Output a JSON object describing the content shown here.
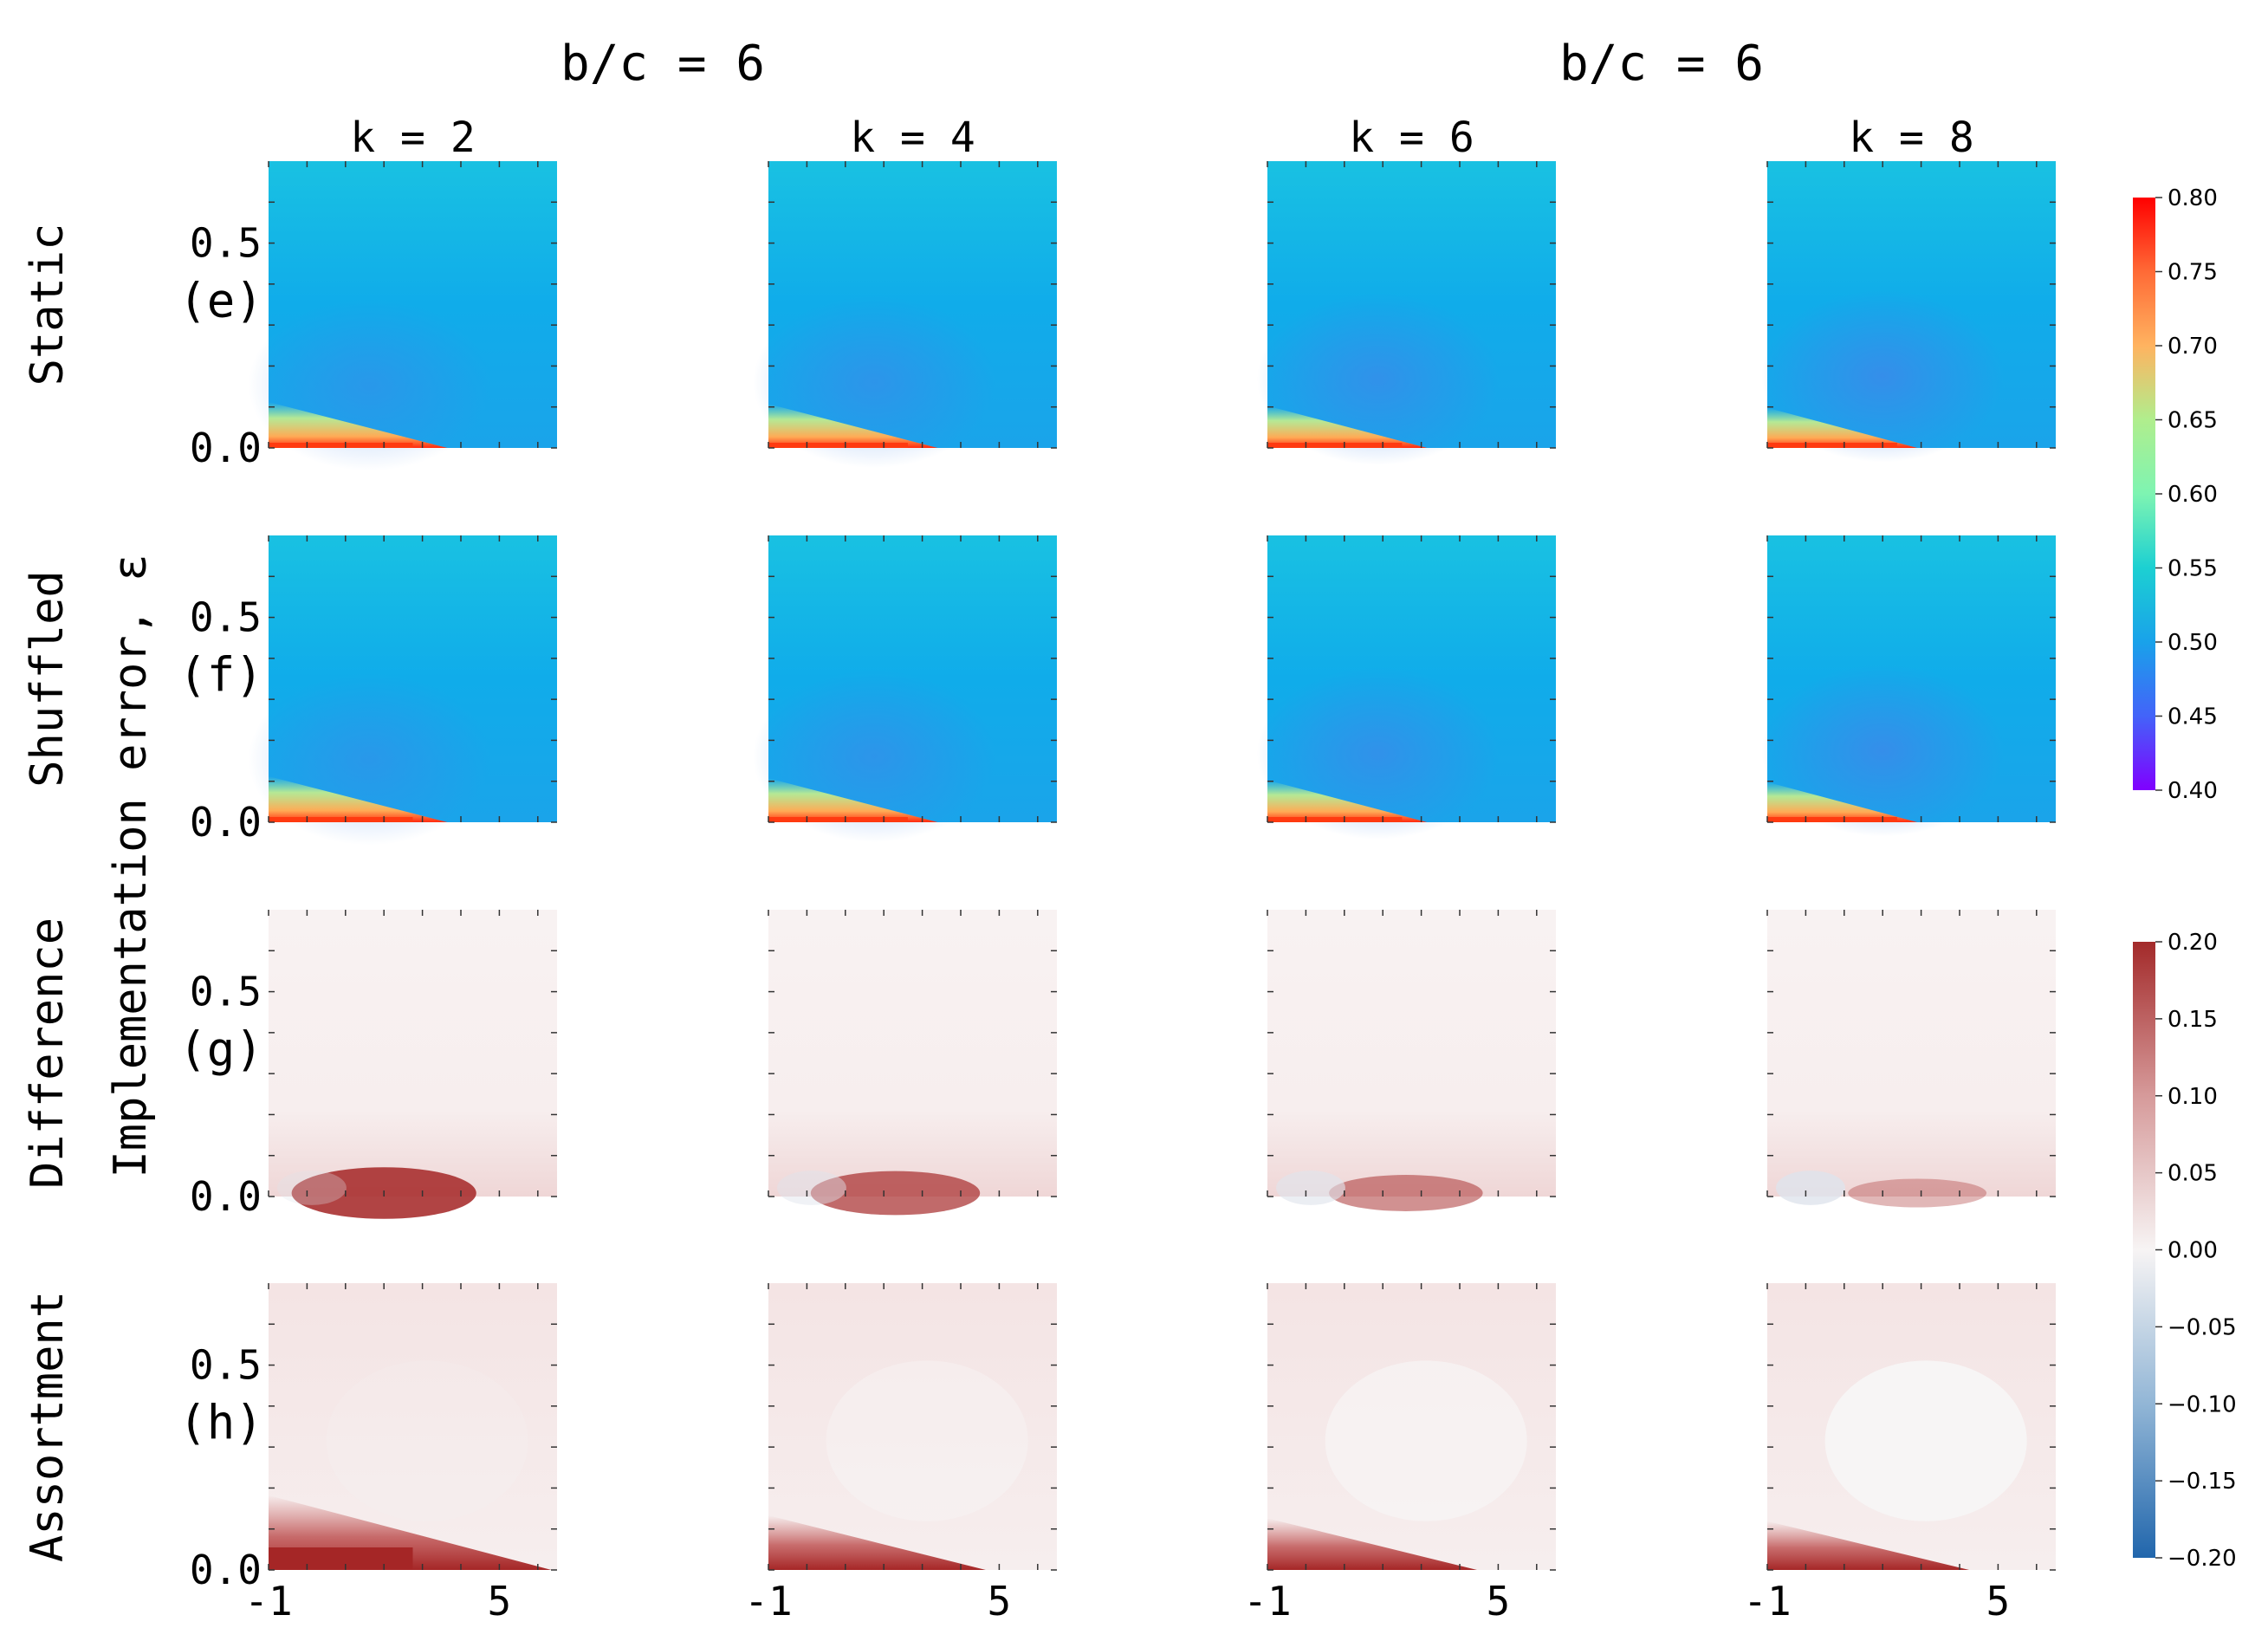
{
  "column_groups": [
    {
      "title": "b/c = 6"
    },
    {
      "title": "b/c = 6"
    }
  ],
  "columns": [
    "k = 2",
    "k = 4",
    "k = 6",
    "k = 8"
  ],
  "rows": [
    {
      "label": "Static",
      "panel": "(e)"
    },
    {
      "label": "Shuffled",
      "panel": "(f)"
    },
    {
      "label": "Difference",
      "panel": "(g)"
    },
    {
      "label": "Assortment",
      "panel": "(h)"
    }
  ],
  "ylabel": "Implementation error, ε",
  "ytick_labels": [
    "0.0",
    "0.5"
  ],
  "xtick_labels": [
    "-1",
    "5"
  ],
  "colorbars": [
    {
      "name": "rainbow",
      "ticks": [
        "0.80",
        "0.75",
        "0.70",
        "0.65",
        "0.60",
        "0.55",
        "0.50",
        "0.45",
        "0.40"
      ]
    },
    {
      "name": "diverging",
      "ticks": [
        "0.20",
        "0.15",
        "0.10",
        "0.05",
        "0.00",
        "−0.05",
        "−0.10",
        "−0.15",
        "−0.20"
      ]
    }
  ],
  "chart_data": {
    "type": "heatmap",
    "layout": "4x4 grid of heatmaps",
    "x_range": [
      -1,
      6.5
    ],
    "y_range": [
      0,
      0.7
    ],
    "xticks": [
      -1,
      5
    ],
    "yticks": [
      0.0,
      0.5
    ],
    "colormaps": {
      "static_shuffled": {
        "name": "rainbow",
        "range": [
          0.4,
          0.8
        ]
      },
      "difference_assortment": {
        "name": "red-white-blue diverging",
        "range": [
          -0.2,
          0.2
        ]
      }
    },
    "approx_panel_values": {
      "Static": {
        "background": 0.51,
        "minimum": 0.46,
        "maximum_near_eps0": 0.8
      },
      "Shuffled": {
        "background": 0.51,
        "minimum": 0.46,
        "maximum_near_eps0": 0.8
      },
      "Difference": {
        "background": 0.01,
        "peak_near_eps0": 0.2
      },
      "Assortment": {
        "background": 0.03,
        "peak_near_eps0": 0.2
      }
    }
  }
}
